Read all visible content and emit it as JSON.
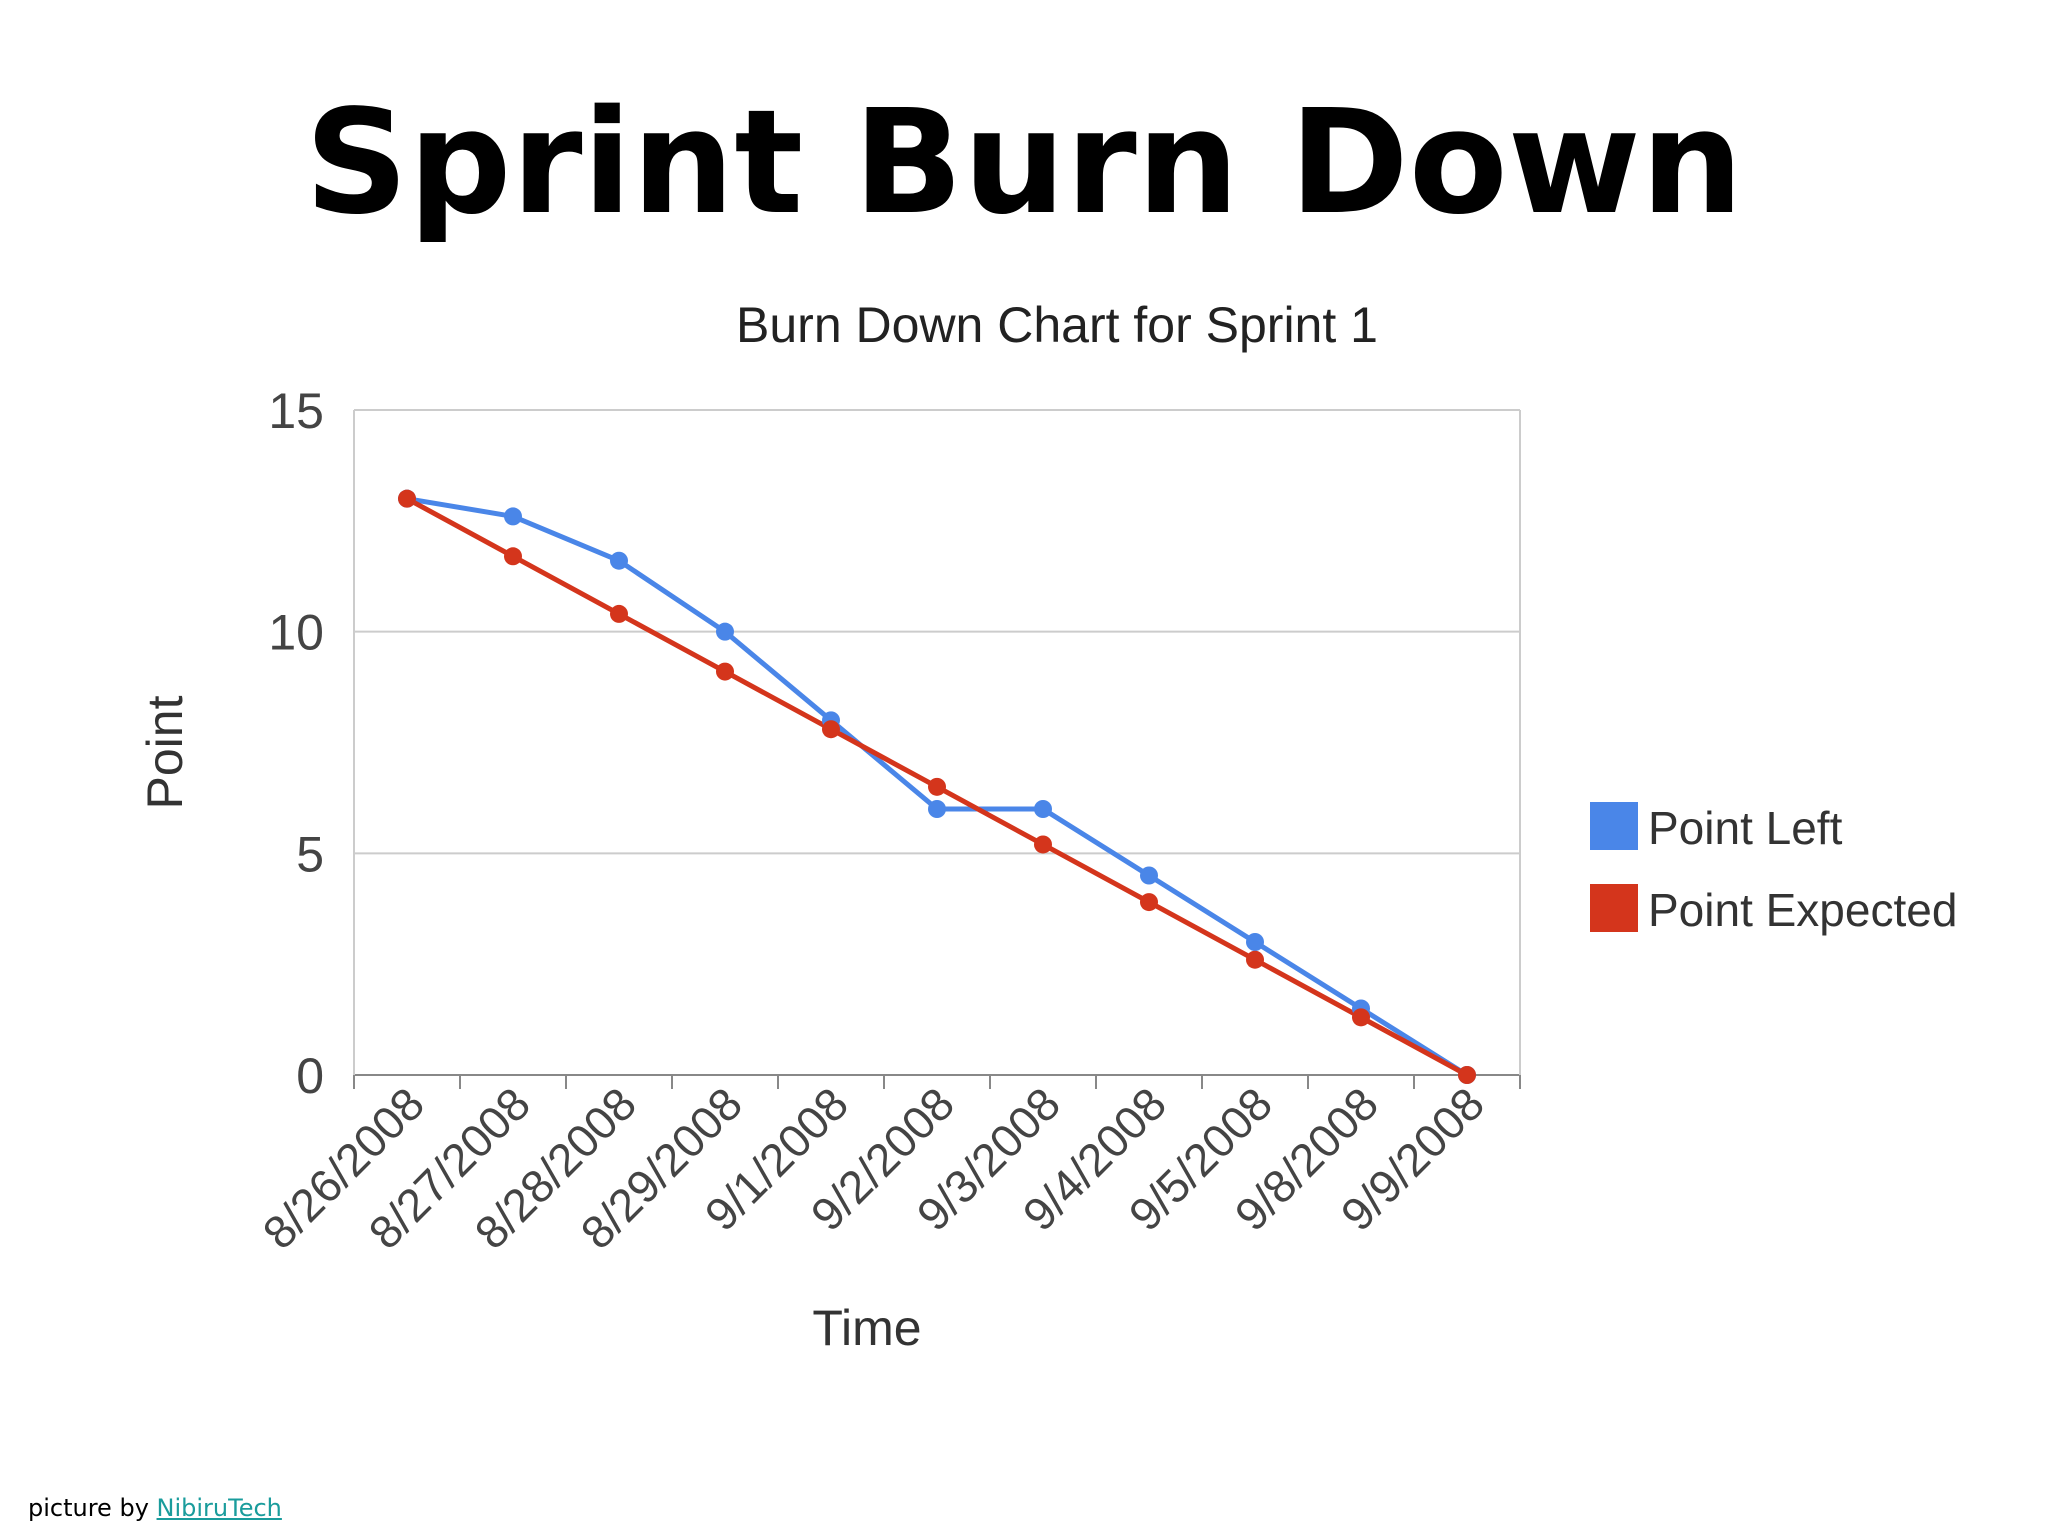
{
  "slide": {
    "title": "Sprint Burn Down"
  },
  "credit": {
    "prefix": "picture by",
    "link_text": "NibiruTech"
  },
  "chart_data": {
    "type": "line",
    "title": "Burn Down Chart for Sprint 1",
    "xlabel": "Time",
    "ylabel": "Point",
    "categories": [
      "8/26/2008",
      "8/27/2008",
      "8/28/2008",
      "8/29/2008",
      "9/1/2008",
      "9/2/2008",
      "9/3/2008",
      "9/4/2008",
      "9/5/2008",
      "9/8/2008",
      "9/9/2008"
    ],
    "yticks": [
      "0",
      "5",
      "10",
      "15"
    ],
    "ylim": [
      0,
      15
    ],
    "grid": true,
    "legend_position": "right",
    "series": [
      {
        "name": "Point Left",
        "color": "#4a86e8",
        "values": [
          13,
          12.6,
          11.6,
          10,
          8,
          6,
          6,
          4.5,
          3,
          1.5,
          0
        ]
      },
      {
        "name": "Point Expected",
        "color": "#d4351c",
        "values": [
          13,
          11.7,
          10.4,
          9.1,
          7.8,
          6.5,
          5.2,
          3.9,
          2.6,
          1.3,
          0
        ]
      }
    ]
  }
}
